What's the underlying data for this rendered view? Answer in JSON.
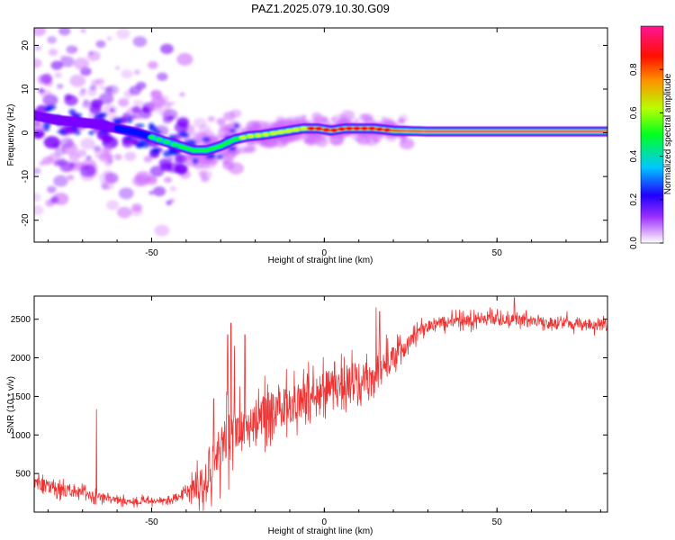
{
  "title": "PAZ1.2025.079.10.30.G09",
  "chart_data": [
    {
      "type": "heatmap",
      "xlabel": "Height of straight line (km)",
      "ylabel": "Frequency (Hz)",
      "xlim": [
        -84,
        82
      ],
      "ylim": [
        -25,
        24
      ],
      "x_ticks": [
        -50,
        0,
        50
      ],
      "y_ticks": [
        -20,
        -10,
        0,
        10,
        20
      ],
      "ridge": {
        "x": [
          -84,
          -78,
          -72,
          -66,
          -60,
          -54,
          -50,
          -46,
          -42,
          -38,
          -34,
          -30,
          -26,
          -22,
          -18,
          -14,
          -10,
          -6,
          -2,
          2,
          6,
          10,
          14,
          20,
          30,
          40,
          50,
          60,
          70,
          82
        ],
        "y": [
          4,
          3,
          2.5,
          2,
          1,
          0,
          -1,
          -2,
          -3,
          -4,
          -4,
          -3,
          -1.5,
          -0.8,
          -0.5,
          0,
          0.5,
          1,
          1,
          0.5,
          1,
          1,
          1,
          0.5,
          0.3,
          0.3,
          0.3,
          0.3,
          0.3,
          0.3
        ]
      },
      "colorbar": {
        "label": "Normalized spectral amplitude",
        "range": [
          0,
          1
        ],
        "ticks": [
          "0.0",
          "0.2",
          "0.4",
          "0.6",
          "0.8"
        ]
      },
      "colors": [
        "#ffffff",
        "#cc66ff",
        "#7a00ff",
        "#0010ff",
        "#00b4ff",
        "#00ff30",
        "#c8ff00",
        "#ff8a00",
        "#ff0000",
        "#ff1490"
      ]
    },
    {
      "type": "line",
      "xlabel": "Height of straight line (km)",
      "ylabel": "SNR (10 * v/v)",
      "xlim": [
        -84,
        82
      ],
      "ylim": [
        0,
        2800
      ],
      "x_ticks": [
        -50,
        0,
        50
      ],
      "y_ticks": [
        500,
        1000,
        1500,
        2000,
        2500
      ],
      "line_color": "#ee3333",
      "series": [
        {
          "trend_x": [
            -84,
            -80,
            -75,
            -70,
            -65,
            -60,
            -55,
            -50,
            -45,
            -42,
            -40,
            -37,
            -35,
            -32,
            -30,
            -28,
            -26,
            -24,
            -22,
            -20,
            -18,
            -15,
            -12,
            -8,
            -4,
            0,
            4,
            8,
            12,
            16,
            20,
            24,
            28,
            32,
            40,
            50,
            60,
            70,
            82
          ],
          "trend_y": [
            380,
            330,
            280,
            250,
            200,
            160,
            140,
            150,
            170,
            200,
            260,
            320,
            450,
            620,
            800,
            950,
            1000,
            1050,
            1100,
            1180,
            1250,
            1300,
            1350,
            1430,
            1520,
            1600,
            1680,
            1720,
            1780,
            1880,
            2000,
            2150,
            2350,
            2450,
            2480,
            2500,
            2470,
            2450,
            2420
          ],
          "noise_amplitude_x": [
            -84,
            -75,
            -60,
            -45,
            -40,
            -35,
            -30,
            -22,
            -15,
            0,
            10,
            20,
            30,
            82
          ],
          "noise_amplitude": [
            120,
            110,
            60,
            60,
            80,
            350,
            500,
            420,
            360,
            300,
            300,
            200,
            110,
            110
          ],
          "spikes": [
            {
              "x": -66,
              "y": 1330
            },
            {
              "x": -27,
              "y": 2450
            },
            {
              "x": -28,
              "y": 2300
            },
            {
              "x": -23,
              "y": 2300
            },
            {
              "x": -26,
              "y": 2150
            },
            {
              "x": -32,
              "y": 1470
            },
            {
              "x": -19,
              "y": 1600
            },
            {
              "x": -6,
              "y": 1850
            },
            {
              "x": 3,
              "y": 1950
            },
            {
              "x": 8,
              "y": 2100
            },
            {
              "x": 15,
              "y": 2650
            },
            {
              "x": 16,
              "y": 2600
            },
            {
              "x": 18,
              "y": 2300
            },
            {
              "x": 55,
              "y": 2780
            }
          ]
        }
      ]
    }
  ]
}
